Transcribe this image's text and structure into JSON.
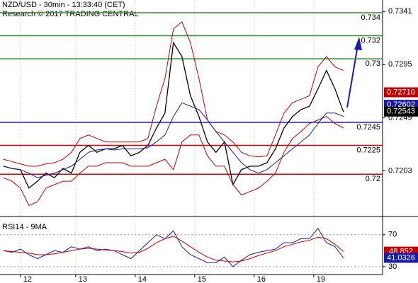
{
  "chart_data": [
    {
      "type": "line",
      "title": "NZD/USD - 30min - 13:33:40 (CET)",
      "subtitle": "Research © 2017 TRADING CENTRAL",
      "xlim": [
        -0.4,
        44.6
      ],
      "xticks": [
        {
          "value": 2,
          "label": "12"
        },
        {
          "value": 8.5,
          "label": "13"
        },
        {
          "value": 15.5,
          "label": "14"
        },
        {
          "value": 22.5,
          "label": "15"
        },
        {
          "value": 29.5,
          "label": "16"
        },
        {
          "value": 36.5,
          "label": "19"
        }
      ],
      "ylim": [
        0.7164,
        0.7351
      ],
      "yticks": [
        0.7203,
        0.7249,
        0.7295,
        0.7341
      ],
      "series": [
        {
          "color": "#000000",
          "values": [
            0.7207,
            0.7205,
            0.7204,
            0.7188,
            0.7194,
            0.7201,
            0.7197,
            0.7205,
            0.7201,
            0.7219,
            0.7225,
            0.7219,
            0.7222,
            0.7222,
            0.7225,
            0.7216,
            0.7219,
            0.7225,
            0.724,
            0.7253,
            0.7314,
            0.7302,
            0.7268,
            0.725,
            0.7228,
            0.7219,
            0.7228,
            0.7191,
            0.7204,
            0.7207,
            0.7207,
            0.721,
            0.7222,
            0.724,
            0.725,
            0.7256,
            0.7259,
            0.7274,
            0.729,
            0.7274,
            0.7254
          ]
        },
        {
          "color": "#c00000",
          "values": [
            0.7213,
            0.7211,
            0.7209,
            0.7207,
            0.7207,
            0.7209,
            0.721,
            0.7213,
            0.7219,
            0.7231,
            0.7234,
            0.7231,
            0.7228,
            0.7228,
            0.7228,
            0.7228,
            0.7228,
            0.7231,
            0.7259,
            0.7283,
            0.7326,
            0.7332,
            0.7314,
            0.7283,
            0.7247,
            0.7237,
            0.7234,
            0.7228,
            0.7219,
            0.7216,
            0.7215,
            0.7216,
            0.7234,
            0.7253,
            0.7262,
            0.7265,
            0.7268,
            0.7293,
            0.7302,
            0.7293,
            0.729
          ]
        },
        {
          "color": "#c00000",
          "values": [
            0.7197,
            0.7194,
            0.7188,
            0.7173,
            0.7176,
            0.7188,
            0.7191,
            0.7194,
            0.7194,
            0.7201,
            0.7207,
            0.7207,
            0.721,
            0.721,
            0.721,
            0.7207,
            0.7207,
            0.7207,
            0.721,
            0.7213,
            0.7204,
            0.7228,
            0.7234,
            0.7234,
            0.7216,
            0.7207,
            0.7207,
            0.7191,
            0.7182,
            0.7185,
            0.7188,
            0.7194,
            0.7201,
            0.7219,
            0.7231,
            0.7237,
            0.7244,
            0.7247,
            0.725,
            0.7244,
            0.724
          ]
        },
        {
          "color": "#1a1aa8",
          "values": [
            0.7207,
            0.7205,
            0.7204,
            0.7201,
            0.7197,
            0.7199,
            0.7201,
            0.7204,
            0.7207,
            0.7213,
            0.7219,
            0.7221,
            0.7222,
            0.7221,
            0.7222,
            0.7222,
            0.7222,
            0.7223,
            0.7228,
            0.7234,
            0.725,
            0.7262,
            0.7259,
            0.7256,
            0.7247,
            0.7237,
            0.7228,
            0.7219,
            0.721,
            0.7204,
            0.7201,
            0.7204,
            0.721,
            0.7216,
            0.7222,
            0.7228,
            0.7234,
            0.7244,
            0.7253,
            0.7253,
            0.725
          ]
        }
      ],
      "levels": [
        {
          "value": 0.734,
          "color": "#2e8b2e"
        },
        {
          "value": 0.732,
          "color": "#2e8b2e"
        },
        {
          "value": 0.73,
          "color": "#2e8b2e"
        },
        {
          "value": 0.7245,
          "color": "#1010c0"
        },
        {
          "value": 0.7225,
          "color": "#d00000"
        },
        {
          "value": 0.72,
          "color": "#d00000"
        }
      ],
      "tags": [
        {
          "value": 0.7271,
          "label": "0.72710",
          "color": "#c00000"
        },
        {
          "value": 0.72602,
          "color": "#1a1aa8"
        },
        {
          "value": 0.72543,
          "color": "#000000"
        }
      ]
    },
    {
      "type": "line",
      "title": "RSI14 - 9MA",
      "xlim": [
        -0.4,
        44.6
      ],
      "ylim": [
        21,
        92
      ],
      "yticks": [
        30,
        70
      ],
      "series": [
        {
          "color": "#1a1aa8",
          "values": [
            50,
            48,
            52,
            45,
            40,
            45,
            50,
            48,
            55,
            52,
            55,
            50,
            52,
            50,
            45,
            40,
            50,
            60,
            70,
            65,
            75,
            55,
            45,
            40,
            35,
            35,
            42,
            30,
            38,
            45,
            48,
            50,
            52,
            60,
            60,
            65,
            65,
            78,
            60,
            55,
            41
          ]
        },
        {
          "color": "#c00000",
          "values": [
            50,
            49,
            48,
            47,
            45,
            45,
            46,
            48,
            50,
            52,
            53,
            52,
            51,
            50,
            49,
            47,
            48,
            53,
            60,
            65,
            68,
            62,
            55,
            48,
            42,
            38,
            37,
            36,
            37,
            40,
            44,
            47,
            50,
            55,
            58,
            61,
            63,
            67,
            65,
            58,
            49
          ]
        }
      ],
      "tags": [
        {
          "value": 48.852,
          "color": "#c00000"
        },
        {
          "value": 41.0326,
          "color": "#1a1aa8"
        }
      ]
    }
  ]
}
